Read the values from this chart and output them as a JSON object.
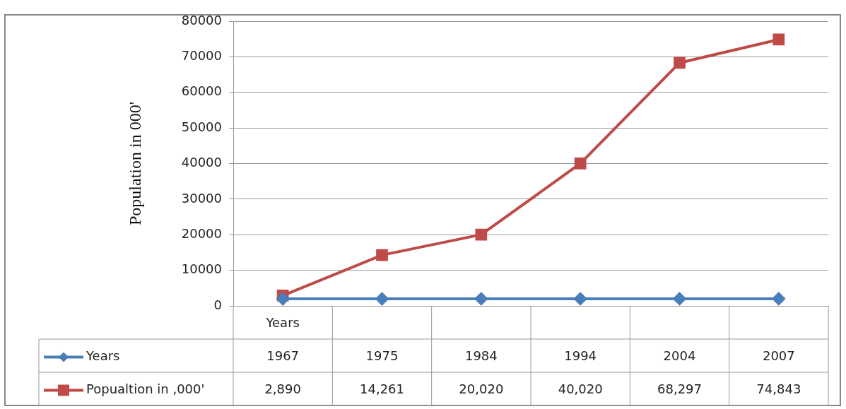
{
  "chart_data": {
    "type": "line",
    "ylabel": "Population in 000'",
    "categories": [
      "Years",
      null,
      null,
      null,
      null,
      null
    ],
    "series": [
      {
        "name": "Years",
        "color": "#4a7ebb",
        "marker": "diamond",
        "values": [
          1967,
          1975,
          1984,
          1994,
          2004,
          2007
        ],
        "value_labels": [
          "1967",
          "1975",
          "1984",
          "1994",
          "2004",
          "2007"
        ]
      },
      {
        "name": "Popualtion in ,000'",
        "color": "#be4b48",
        "marker": "square",
        "values": [
          2890,
          14261,
          20020,
          40020,
          68297,
          74843
        ],
        "value_labels": [
          "2,890",
          "14,261",
          "20,020",
          "40,020",
          "68,297",
          "74,843"
        ]
      }
    ],
    "ylim": [
      0,
      80000
    ],
    "yticks": [
      0,
      10000,
      20000,
      30000,
      40000,
      50000,
      60000,
      70000,
      80000
    ],
    "grid": "y",
    "legend": "bottom left"
  }
}
